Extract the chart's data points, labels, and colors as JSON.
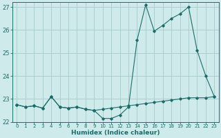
{
  "xlabel": "Humidex (Indice chaleur)",
  "ylabel": "",
  "bg_color": "#ceeaea",
  "grid_color": "#aacfcf",
  "line_color": "#1c6b6b",
  "xlim": [
    -0.5,
    23.5
  ],
  "ylim": [
    22.0,
    27.2
  ],
  "xticks": [
    0,
    1,
    2,
    3,
    4,
    5,
    6,
    7,
    8,
    9,
    10,
    11,
    12,
    13,
    14,
    15,
    16,
    17,
    18,
    19,
    20,
    21,
    22,
    23
  ],
  "yticks": [
    22,
    23,
    24,
    25,
    26,
    27
  ],
  "line1_x": [
    0,
    1,
    2,
    3,
    4,
    5,
    6,
    7,
    8,
    9,
    10,
    11,
    12,
    13,
    14,
    15,
    16,
    17,
    18,
    19,
    20,
    21,
    22,
    23
  ],
  "line1_y": [
    22.75,
    22.65,
    22.7,
    22.6,
    23.1,
    22.65,
    22.6,
    22.65,
    22.55,
    22.5,
    22.55,
    22.6,
    22.65,
    22.7,
    22.75,
    22.8,
    22.85,
    22.9,
    22.95,
    23.0,
    23.05,
    23.05,
    23.05,
    23.1
  ],
  "line2_x": [
    0,
    1,
    2,
    3,
    4,
    5,
    6,
    7,
    8,
    9,
    10,
    11,
    12,
    13,
    14,
    15,
    16,
    17,
    18,
    19,
    20,
    21,
    22,
    23
  ],
  "line2_y": [
    22.75,
    22.65,
    22.7,
    22.6,
    23.1,
    22.65,
    22.6,
    22.65,
    22.55,
    22.5,
    22.15,
    22.15,
    22.3,
    22.65,
    25.55,
    27.1,
    25.95,
    26.2,
    26.5,
    26.7,
    27.0,
    25.1,
    24.0,
    23.1
  ]
}
